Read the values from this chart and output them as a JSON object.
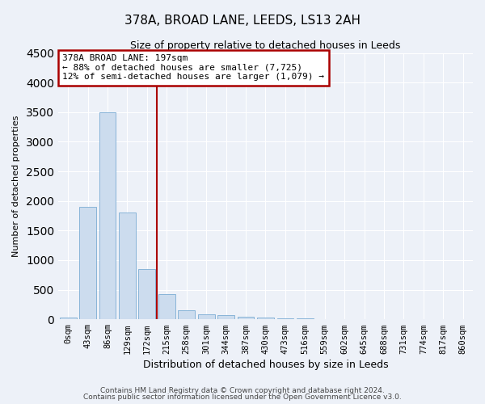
{
  "title_line1": "378A, BROAD LANE, LEEDS, LS13 2AH",
  "title_line2": "Size of property relative to detached houses in Leeds",
  "xlabel": "Distribution of detached houses by size in Leeds",
  "ylabel": "Number of detached properties",
  "categories": [
    "0sqm",
    "43sqm",
    "86sqm",
    "129sqm",
    "172sqm",
    "215sqm",
    "258sqm",
    "301sqm",
    "344sqm",
    "387sqm",
    "430sqm",
    "473sqm",
    "516sqm",
    "559sqm",
    "602sqm",
    "645sqm",
    "688sqm",
    "731sqm",
    "774sqm",
    "817sqm",
    "860sqm"
  ],
  "values": [
    30,
    1900,
    3500,
    1800,
    850,
    430,
    155,
    90,
    70,
    50,
    35,
    20,
    10,
    5,
    3,
    2,
    2,
    1,
    1,
    1,
    0
  ],
  "bar_color": "#ccdcee",
  "bar_edge_color": "#7aacd4",
  "vline_x": 4.5,
  "vline_color": "#aa0000",
  "ylim": [
    0,
    4500
  ],
  "yticks": [
    0,
    500,
    1000,
    1500,
    2000,
    2500,
    3000,
    3500,
    4000,
    4500
  ],
  "annotation_text": "378A BROAD LANE: 197sqm\n← 88% of detached houses are smaller (7,725)\n12% of semi-detached houses are larger (1,079) →",
  "annotation_box_color": "#aa0000",
  "background_color": "#edf1f8",
  "grid_color": "#ffffff",
  "footer_line1": "Contains HM Land Registry data © Crown copyright and database right 2024.",
  "footer_line2": "Contains public sector information licensed under the Open Government Licence v3.0."
}
